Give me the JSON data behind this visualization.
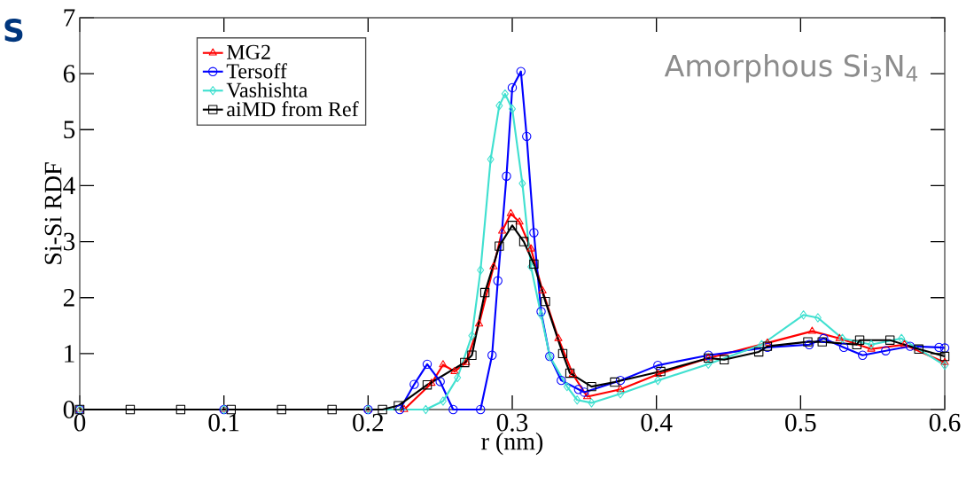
{
  "chart_data": {
    "type": "line",
    "xlabel": "r (nm)",
    "ylabel": "Si-Si RDF",
    "xlim": [
      0,
      0.6
    ],
    "ylim": [
      0,
      7
    ],
    "xticks": [
      0,
      0.1,
      0.2,
      0.3,
      0.4,
      0.5,
      0.6
    ],
    "yticks": [
      0,
      1,
      2,
      3,
      4,
      5,
      6,
      7
    ],
    "legend": "top left",
    "grid": false,
    "annotations": [
      "S",
      "Amorphous Si$_{3}$N$_{4}$"
    ],
    "series": [
      {
        "name": "MG2",
        "color": "#ff0000",
        "marker": "triangle",
        "x": [
          0,
          0.1,
          0.2,
          0.225,
          0.244,
          0.252,
          0.26,
          0.268,
          0.277,
          0.287,
          0.293,
          0.299,
          0.305,
          0.313,
          0.321,
          0.332,
          0.342,
          0.352,
          0.375,
          0.401,
          0.436,
          0.477,
          0.508,
          0.527,
          0.549,
          0.572,
          0.6
        ],
        "values": [
          0,
          0,
          0,
          0,
          0.47,
          0.8,
          0.68,
          0.84,
          1.53,
          2.55,
          3.19,
          3.5,
          3.35,
          2.87,
          2.12,
          1.27,
          0.63,
          0.23,
          0.36,
          0.63,
          0.92,
          1.19,
          1.4,
          1.27,
          1.08,
          1.16,
          0.84
        ]
      },
      {
        "name": "Tersoff",
        "color": "#0000ff",
        "marker": "circle",
        "x": [
          0,
          0.1,
          0.2,
          0.222,
          0.232,
          0.241,
          0.25,
          0.259,
          0.278,
          0.286,
          0.29,
          0.296,
          0.3,
          0.306,
          0.31,
          0.315,
          0.32,
          0.326,
          0.334,
          0.346,
          0.35,
          0.375,
          0.401,
          0.436,
          0.477,
          0.506,
          0.516,
          0.53,
          0.543,
          0.559,
          0.576,
          0.596,
          0.6
        ],
        "values": [
          0,
          0,
          0,
          0,
          0.45,
          0.81,
          0.5,
          0,
          0,
          0.97,
          2.3,
          4.17,
          5.75,
          6.04,
          4.88,
          3.16,
          1.75,
          0.95,
          0.52,
          0.36,
          0.31,
          0.52,
          0.79,
          0.97,
          1.11,
          1.16,
          1.27,
          1.11,
          0.97,
          1.05,
          1.13,
          1.11,
          1.1
        ]
      },
      {
        "name": "Vashishta",
        "color": "#40e0d0",
        "marker": "diamond",
        "x": [
          0,
          0.1,
          0.2,
          0.24,
          0.252,
          0.262,
          0.272,
          0.278,
          0.285,
          0.291,
          0.295,
          0.3,
          0.307,
          0.313,
          0.32,
          0.326,
          0.338,
          0.345,
          0.355,
          0.375,
          0.401,
          0.436,
          0.473,
          0.502,
          0.512,
          0.529,
          0.549,
          0.57,
          0.6
        ],
        "values": [
          0,
          0,
          0,
          0,
          0.15,
          0.57,
          1.32,
          2.49,
          4.47,
          5.43,
          5.64,
          5.37,
          4.04,
          2.55,
          1.69,
          0.95,
          0.41,
          0.17,
          0.12,
          0.28,
          0.52,
          0.81,
          1.16,
          1.69,
          1.64,
          1.27,
          1.16,
          1.27,
          0.79
        ]
      },
      {
        "name": "aiMD from Ref",
        "color": "#000000",
        "marker": "square",
        "x": [
          0,
          0.035,
          0.07,
          0.105,
          0.14,
          0.175,
          0.21,
          0.221,
          0.241,
          0.267,
          0.272,
          0.281,
          0.291,
          0.3,
          0.308,
          0.315,
          0.323,
          0.335,
          0.34,
          0.355,
          0.371,
          0.403,
          0.436,
          0.447,
          0.471,
          0.477,
          0.505,
          0.515,
          0.539,
          0.541,
          0.562,
          0.582,
          0.6
        ],
        "values": [
          0,
          0,
          0,
          0,
          0,
          0,
          0,
          0.07,
          0.44,
          0.84,
          0.97,
          2.09,
          2.92,
          3.29,
          3.0,
          2.6,
          1.93,
          1.0,
          0.65,
          0.41,
          0.49,
          0.68,
          0.92,
          0.89,
          1.03,
          1.13,
          1.21,
          1.21,
          1.16,
          1.24,
          1.24,
          1.08,
          0.95
        ]
      }
    ]
  }
}
